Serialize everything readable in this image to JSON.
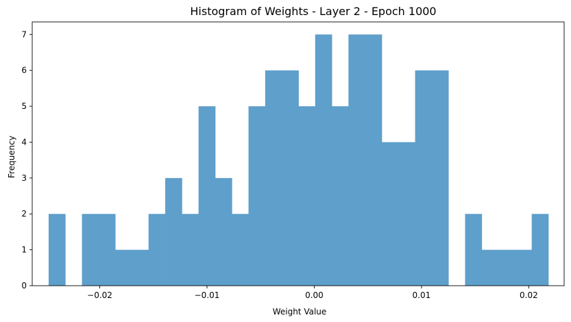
{
  "chart_data": {
    "type": "bar",
    "title": "Histogram of Weights - Layer 2 - Epoch 1000",
    "xlabel": "Weight Value",
    "ylabel": "Frequency",
    "bar_color": "#5f9fcb",
    "xlim": [
      -0.0263,
      0.0233
    ],
    "ylim": [
      0,
      7.35
    ],
    "grid": false,
    "bin_start": -0.02477,
    "bin_width": 0.0015533,
    "counts": [
      2,
      0,
      2,
      2,
      1,
      1,
      2,
      3,
      2,
      5,
      3,
      2,
      5,
      6,
      6,
      5,
      7,
      5,
      7,
      7,
      4,
      4,
      6,
      6,
      0,
      2,
      1,
      1,
      1,
      2
    ],
    "x_ticks": [
      {
        "value": -0.02,
        "label": "−0.02"
      },
      {
        "value": -0.01,
        "label": "−0.01"
      },
      {
        "value": 0.0,
        "label": "0.00"
      },
      {
        "value": 0.01,
        "label": "0.01"
      },
      {
        "value": 0.02,
        "label": "0.02"
      }
    ],
    "y_ticks": [
      {
        "value": 0,
        "label": "0"
      },
      {
        "value": 1,
        "label": "1"
      },
      {
        "value": 2,
        "label": "2"
      },
      {
        "value": 3,
        "label": "3"
      },
      {
        "value": 4,
        "label": "4"
      },
      {
        "value": 5,
        "label": "5"
      },
      {
        "value": 6,
        "label": "6"
      },
      {
        "value": 7,
        "label": "7"
      }
    ]
  }
}
